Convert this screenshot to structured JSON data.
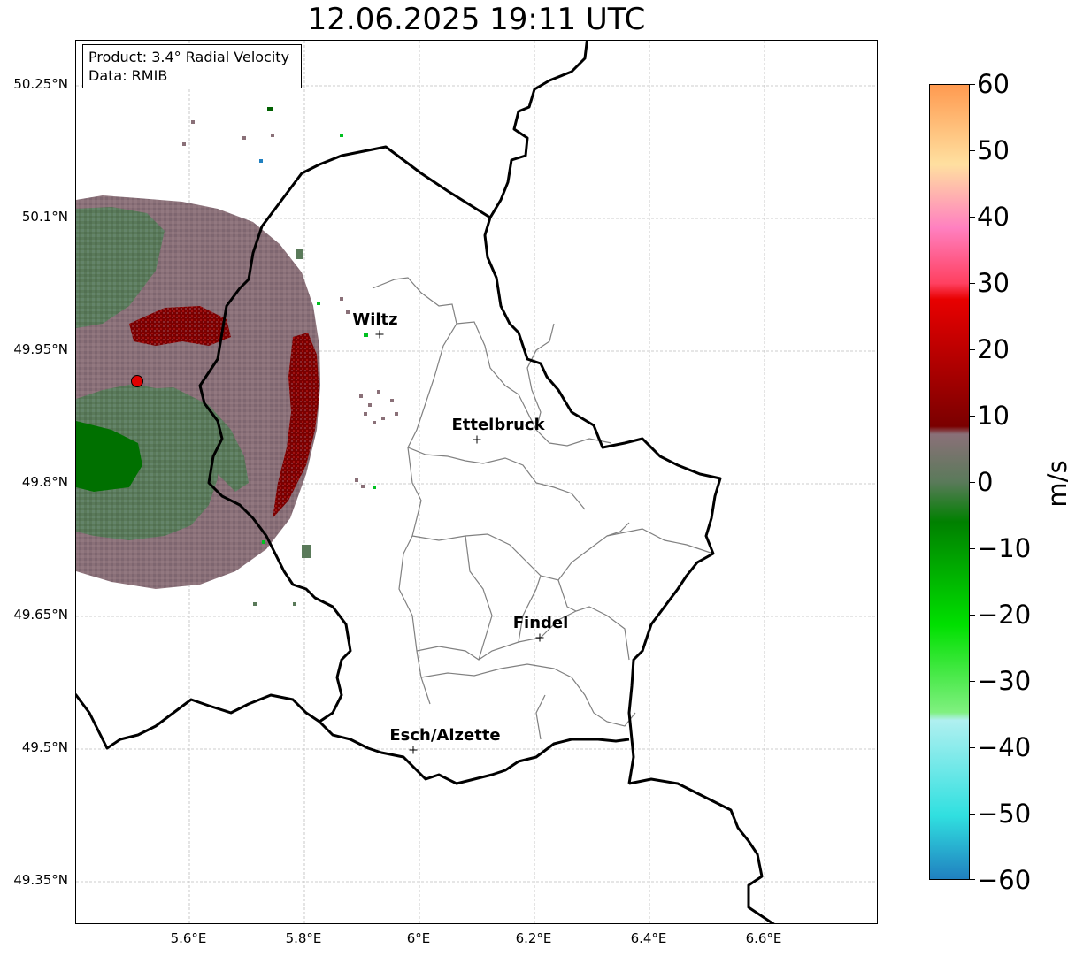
{
  "title": "12.06.2025 19:11 UTC",
  "info": {
    "product": "Product: 3.4° Radial Velocity",
    "data": "Data: RMIB"
  },
  "latitude_labels": [
    "50.25°N",
    "50.1°N",
    "49.95°N",
    "49.8°N",
    "49.65°N",
    "49.5°N",
    "49.35°N"
  ],
  "longitude_labels": [
    "5.6°E",
    "5.8°E",
    "6°E",
    "6.2°E",
    "6.4°E",
    "6.6°E"
  ],
  "cities": [
    {
      "name": "Wiltz"
    },
    {
      "name": "Ettelbruck"
    },
    {
      "name": "Findel"
    },
    {
      "name": "Esch/Alzette"
    }
  ],
  "colorbar": {
    "unit": "m/s",
    "ticks": [
      "60",
      "50",
      "40",
      "30",
      "20",
      "10",
      "0",
      "−10",
      "−20",
      "−30",
      "−40",
      "−50",
      "−60"
    ],
    "min": -60,
    "max": 60,
    "colors": {
      "strong_outbound": "#ff9a50",
      "outbound_red": "#e80000",
      "dark_red": "#7a0000",
      "near_zero_mauve": "#8a7078",
      "near_zero_green": "#5a7a5a",
      "inbound_green": "#008000",
      "bright_green": "#00e000",
      "cyan": "#30e0e0",
      "strong_inbound": "#2080c0"
    }
  }
}
